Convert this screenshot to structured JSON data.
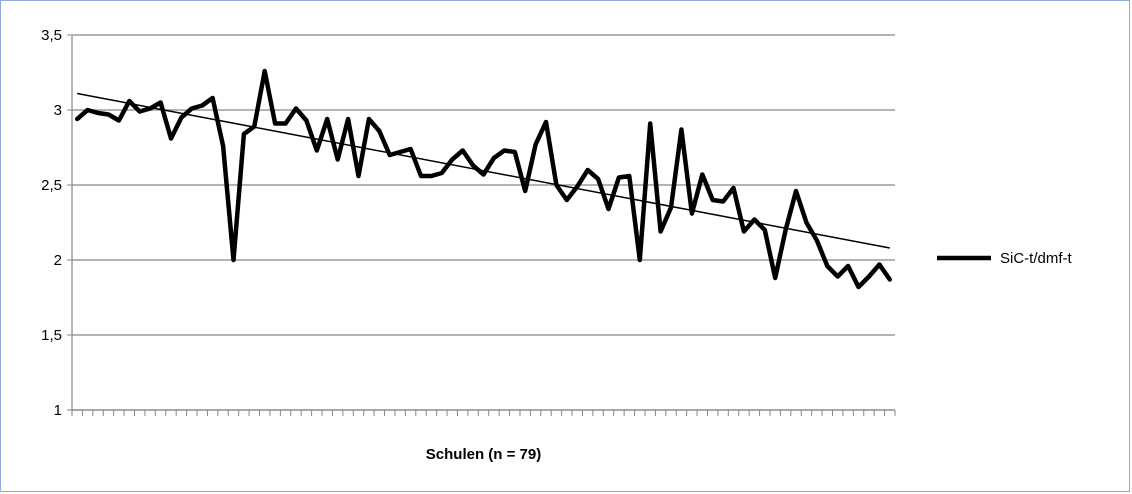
{
  "chart_data": {
    "type": "line",
    "title": "",
    "xlabel": "Schulen (n = 79)",
    "ylabel": "",
    "ylim": [
      1,
      3.5
    ],
    "yticks": [
      "1",
      "1,5",
      "2",
      "2,5",
      "3",
      "3,5"
    ],
    "grid": "horizontal",
    "legend": "right",
    "colors": {
      "series": "#000000",
      "gridline": "#868686",
      "axis": "#868686"
    },
    "series": [
      {
        "name": "SiC-t/dmf-t",
        "values": [
          2.94,
          3.0,
          2.98,
          2.97,
          2.93,
          3.06,
          2.99,
          3.01,
          3.05,
          2.81,
          2.95,
          3.01,
          3.03,
          3.08,
          2.76,
          2.0,
          2.84,
          2.89,
          3.26,
          2.91,
          2.91,
          3.01,
          2.93,
          2.73,
          2.94,
          2.67,
          2.94,
          2.56,
          2.94,
          2.86,
          2.7,
          2.72,
          2.74,
          2.56,
          2.56,
          2.58,
          2.67,
          2.73,
          2.63,
          2.57,
          2.68,
          2.73,
          2.72,
          2.46,
          2.77,
          2.92,
          2.5,
          2.4,
          2.49,
          2.6,
          2.54,
          2.34,
          2.55,
          2.56,
          2.0,
          2.91,
          2.19,
          2.35,
          2.87,
          2.31,
          2.57,
          2.4,
          2.39,
          2.48,
          2.19,
          2.27,
          2.2,
          1.88,
          2.2,
          2.46,
          2.25,
          2.13,
          1.96,
          1.89,
          1.96,
          1.82,
          1.89,
          1.97,
          1.87
        ]
      }
    ],
    "trendline": {
      "type": "linear",
      "start": 3.11,
      "end": 2.08
    }
  }
}
